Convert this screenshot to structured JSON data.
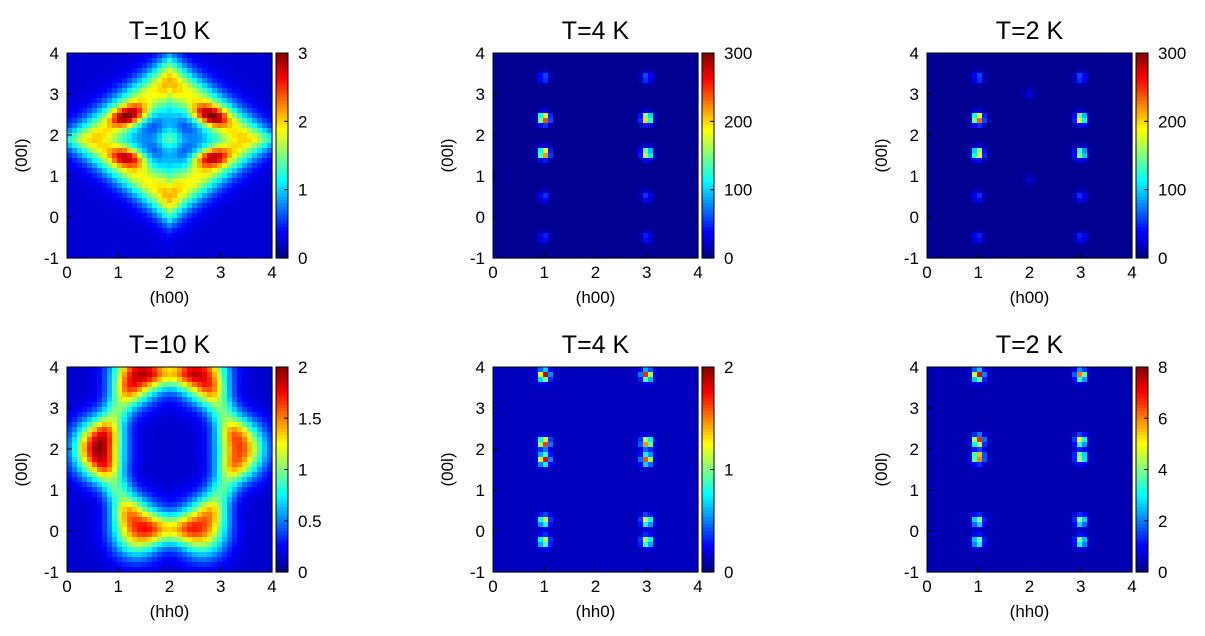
{
  "figure": {
    "layout": "2 rows x 3 columns of heatmaps with colorbars"
  },
  "chart_data": [
    {
      "type": "heatmap",
      "title": "T=10 K",
      "xlabel": "(h00)",
      "ylabel": "(00l)",
      "xlim": [
        0,
        4
      ],
      "ylim": [
        -1,
        4
      ],
      "xticks": [
        "0",
        "1",
        "2",
        "3",
        "4"
      ],
      "yticks": [
        "-1",
        "0",
        "1",
        "2",
        "3",
        "4"
      ],
      "colorbar": {
        "range": [
          0,
          3
        ],
        "ticks": [
          "0",
          "1",
          "2",
          "3"
        ],
        "colormap": "jet"
      },
      "pattern": "diamond",
      "features": [
        {
          "x": 1.1,
          "y": 2.4,
          "v": 2.6
        },
        {
          "x": 1.35,
          "y": 2.55,
          "v": 2.4
        },
        {
          "x": 2.65,
          "y": 2.55,
          "v": 2.4
        },
        {
          "x": 2.9,
          "y": 2.4,
          "v": 2.6
        },
        {
          "x": 1.1,
          "y": 1.5,
          "v": 2.5
        },
        {
          "x": 1.35,
          "y": 1.4,
          "v": 2.3
        },
        {
          "x": 2.65,
          "y": 1.4,
          "v": 2.3
        },
        {
          "x": 2.9,
          "y": 1.5,
          "v": 2.5
        }
      ]
    },
    {
      "type": "heatmap",
      "title": "T=4 K",
      "xlabel": "(h00)",
      "ylabel": "(00l)",
      "xlim": [
        0,
        4
      ],
      "ylim": [
        -1,
        4
      ],
      "xticks": [
        "0",
        "1",
        "2",
        "3",
        "4"
      ],
      "yticks": [
        "-1",
        "0",
        "1",
        "2",
        "3",
        "4"
      ],
      "colorbar": {
        "range": [
          0,
          300
        ],
        "ticks": [
          "0",
          "100",
          "200",
          "300"
        ],
        "colormap": "jet"
      },
      "background": 5,
      "peaks": [
        {
          "x": 1,
          "y": 2.4,
          "v": 290
        },
        {
          "x": 1,
          "y": 1.55,
          "v": 270
        },
        {
          "x": 3,
          "y": 2.4,
          "v": 240
        },
        {
          "x": 3,
          "y": 1.55,
          "v": 210
        },
        {
          "x": 1,
          "y": 3.4,
          "v": 70
        },
        {
          "x": 3,
          "y": 3.4,
          "v": 70
        },
        {
          "x": 1,
          "y": 0.5,
          "v": 55
        },
        {
          "x": 3,
          "y": 0.5,
          "v": 55
        },
        {
          "x": 1,
          "y": -0.5,
          "v": 55
        },
        {
          "x": 3,
          "y": -0.5,
          "v": 55
        }
      ]
    },
    {
      "type": "heatmap",
      "title": "T=2 K",
      "xlabel": "(h00)",
      "ylabel": "(00l)",
      "xlim": [
        0,
        4
      ],
      "ylim": [
        -1,
        4
      ],
      "xticks": [
        "0",
        "1",
        "2",
        "3",
        "4"
      ],
      "yticks": [
        "-1",
        "0",
        "1",
        "2",
        "3",
        "4"
      ],
      "colorbar": {
        "range": [
          0,
          300
        ],
        "ticks": [
          "0",
          "100",
          "200",
          "300"
        ],
        "colormap": "jet"
      },
      "background": 5,
      "peaks": [
        {
          "x": 1,
          "y": 2.4,
          "v": 280
        },
        {
          "x": 1,
          "y": 1.55,
          "v": 230
        },
        {
          "x": 3,
          "y": 2.4,
          "v": 220
        },
        {
          "x": 3,
          "y": 1.55,
          "v": 190
        },
        {
          "x": 1,
          "y": 3.4,
          "v": 70
        },
        {
          "x": 3,
          "y": 3.4,
          "v": 70
        },
        {
          "x": 1,
          "y": 0.5,
          "v": 55
        },
        {
          "x": 3,
          "y": 0.5,
          "v": 55
        },
        {
          "x": 1,
          "y": -0.5,
          "v": 55
        },
        {
          "x": 3,
          "y": -0.5,
          "v": 55
        },
        {
          "x": 2,
          "y": 3.0,
          "v": 30
        },
        {
          "x": 2,
          "y": 0.9,
          "v": 25
        }
      ]
    },
    {
      "type": "heatmap",
      "title": "T=10 K",
      "xlabel": "(hh0)",
      "ylabel": "(00l)",
      "xlim": [
        0,
        4
      ],
      "ylim": [
        -1,
        4
      ],
      "xticks": [
        "0",
        "1",
        "2",
        "3",
        "4"
      ],
      "yticks": [
        "-1",
        "0",
        "1",
        "2",
        "3",
        "4"
      ],
      "colorbar": {
        "range": [
          0,
          2
        ],
        "ticks": [
          "0",
          "0.5",
          "1",
          "1.5",
          "2"
        ],
        "colormap": "jet"
      },
      "pattern": "hexagon",
      "features": [
        {
          "x": 0.6,
          "y": 2.0,
          "v": 2.0
        },
        {
          "x": 1.35,
          "y": 3.85,
          "v": 1.75
        },
        {
          "x": 2.65,
          "y": 3.85,
          "v": 1.7
        },
        {
          "x": 3.4,
          "y": 2.0,
          "v": 1.6
        },
        {
          "x": 1.35,
          "y": 0.05,
          "v": 1.55
        },
        {
          "x": 2.65,
          "y": 0.05,
          "v": 1.5
        }
      ]
    },
    {
      "type": "heatmap",
      "title": "T=4 K",
      "xlabel": "(hh0)",
      "ylabel": "(00l)",
      "xlim": [
        0,
        4
      ],
      "ylim": [
        -1,
        4
      ],
      "xticks": [
        "0",
        "1",
        "2",
        "3",
        "4"
      ],
      "yticks": [
        "-1",
        "0",
        "1",
        "2",
        "3",
        "4"
      ],
      "colorbar": {
        "range": [
          0,
          2
        ],
        "ticks": [
          "0",
          "1",
          "2"
        ],
        "colormap": "jet"
      },
      "background": 0.12,
      "peaks": [
        {
          "x": 1,
          "y": 3.8,
          "v": 2.0
        },
        {
          "x": 3,
          "y": 3.8,
          "v": 1.8
        },
        {
          "x": 1,
          "y": 2.15,
          "v": 1.9
        },
        {
          "x": 3,
          "y": 2.15,
          "v": 1.7
        },
        {
          "x": 1,
          "y": 1.75,
          "v": 1.9
        },
        {
          "x": 3,
          "y": 1.75,
          "v": 1.7
        },
        {
          "x": 1,
          "y": 0.25,
          "v": 1.3
        },
        {
          "x": 3,
          "y": 0.25,
          "v": 1.3
        },
        {
          "x": 1,
          "y": -0.25,
          "v": 1.3
        },
        {
          "x": 3,
          "y": -0.25,
          "v": 1.3
        }
      ]
    },
    {
      "type": "heatmap",
      "title": "T=2 K",
      "xlabel": "(hh0)",
      "ylabel": "(00l)",
      "xlim": [
        0,
        4
      ],
      "ylim": [
        -1,
        4
      ],
      "xticks": [
        "0",
        "1",
        "2",
        "3",
        "4"
      ],
      "yticks": [
        "-1",
        "0",
        "1",
        "2",
        "3",
        "4"
      ],
      "colorbar": {
        "range": [
          0,
          8
        ],
        "ticks": [
          "0",
          "2",
          "4",
          "6",
          "8"
        ],
        "colormap": "jet"
      },
      "background": 0.4,
      "peaks": [
        {
          "x": 1,
          "y": 3.8,
          "v": 7.8
        },
        {
          "x": 3,
          "y": 3.8,
          "v": 6.5
        },
        {
          "x": 1,
          "y": 2.2,
          "v": 7.5
        },
        {
          "x": 3,
          "y": 2.2,
          "v": 5.5
        },
        {
          "x": 1,
          "y": 1.8,
          "v": 7.5
        },
        {
          "x": 3,
          "y": 1.8,
          "v": 5.5
        },
        {
          "x": 1,
          "y": 0.25,
          "v": 4.5
        },
        {
          "x": 3,
          "y": 0.25,
          "v": 4.5
        },
        {
          "x": 1,
          "y": -0.25,
          "v": 4.5
        },
        {
          "x": 3,
          "y": -0.25,
          "v": 4.5
        }
      ]
    }
  ]
}
